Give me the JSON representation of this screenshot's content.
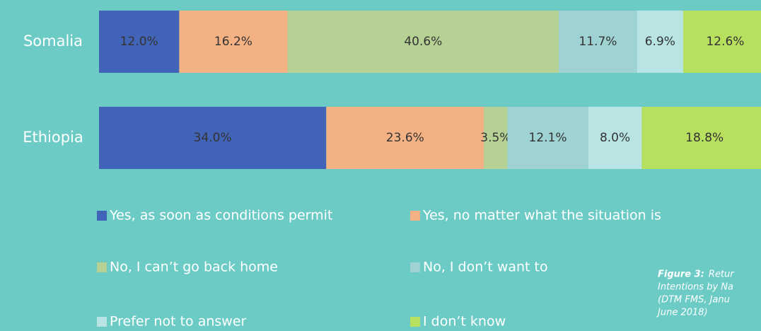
{
  "chart_data": {
    "type": "stacked_barh",
    "categories": [
      "Somalia",
      "Ethiopia"
    ],
    "xlim": [
      0,
      100
    ],
    "series": [
      {
        "name": "Yes, as soon as conditions permit",
        "color": "#4264b8",
        "values": [
          12.0,
          34.0
        ],
        "value_labels": [
          "12.0%",
          "34.0%"
        ]
      },
      {
        "name": "Yes, no matter what the situation is",
        "color": "#f4b183",
        "values": [
          16.2,
          23.6
        ],
        "value_labels": [
          "16.2%",
          "23.6%"
        ]
      },
      {
        "name": "No, I can’t go back home",
        "color": "#b5d194",
        "values": [
          40.6,
          3.5
        ],
        "value_labels": [
          "40.6%",
          "3.5%"
        ]
      },
      {
        "name": "No, I don’t want to",
        "color": "#9fd2d2",
        "values": [
          11.7,
          12.1
        ],
        "value_labels": [
          "11.7%",
          "12.1%"
        ]
      },
      {
        "name": "Prefer not to answer",
        "color": "#b8e4e4",
        "values": [
          6.9,
          8.0
        ],
        "value_labels": [
          "6.9%",
          "8.0%"
        ]
      },
      {
        "name": "I don’t know",
        "color": "#b8e05f",
        "values": [
          12.6,
          18.8
        ],
        "value_labels": [
          "12.6%",
          "18.8%"
        ]
      }
    ],
    "caption": {
      "label": "Figure 3:",
      "lines": [
        "Retur",
        "Intentions by Na",
        "(DTM FMS, Janu",
        "June 2018)"
      ]
    }
  }
}
